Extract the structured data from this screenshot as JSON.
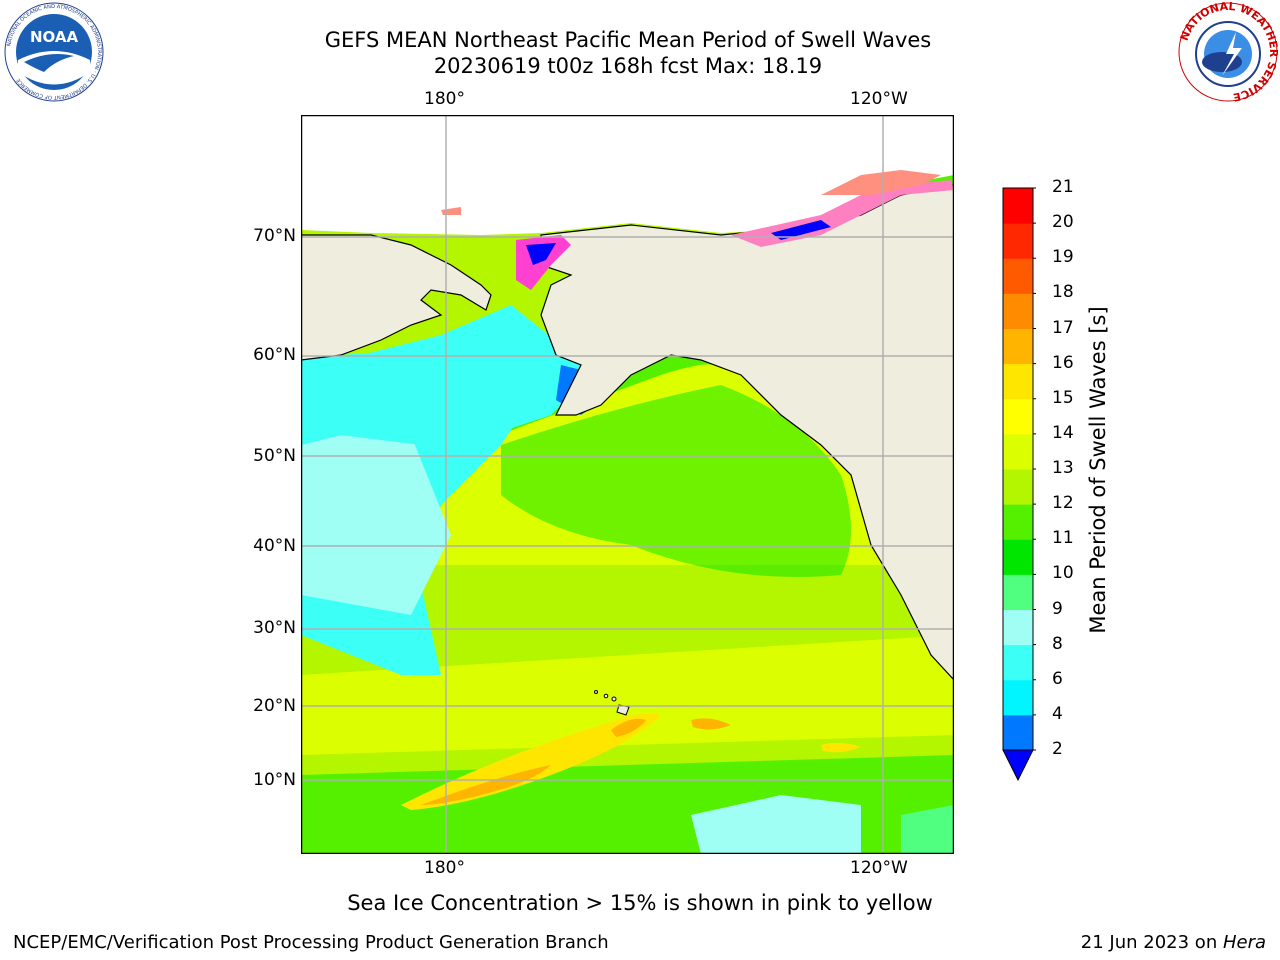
{
  "header": {
    "title_line1": "GEFS MEAN Northeast Pacific Mean Period of Swell Waves",
    "title_line2": "20230619 t00z 168h fcst   Max: 18.19"
  },
  "logos": {
    "left": {
      "text": "NOAA",
      "ring_text": "NATIONAL OCEANIC AND ATMOSPHERIC ADMINISTRATION · U.S. DEPARTMENT OF COMMERCE"
    },
    "right": {
      "ring_text": "NATIONAL WEATHER SERVICE"
    }
  },
  "map": {
    "lon_labels_top": [
      "180°",
      "120°W"
    ],
    "lon_labels_bottom": [
      "180°",
      "120°W"
    ],
    "lat_labels": [
      "70°N",
      "60°N",
      "50°N",
      "40°N",
      "30°N",
      "20°N",
      "10°N"
    ],
    "land_color": "#efedde",
    "gridline_color": "#b0b0b0"
  },
  "colorbar": {
    "label": "Mean Period of Swell Waves [s]",
    "ticks": [
      "21",
      "20",
      "19",
      "18",
      "17",
      "16",
      "15",
      "14",
      "13",
      "12",
      "11",
      "10",
      "9",
      "8",
      "6",
      "4",
      "2"
    ],
    "levels_bottom_to_top": [
      2,
      4,
      6,
      8,
      9,
      10,
      11,
      12,
      13,
      14,
      15,
      16,
      17,
      18,
      19,
      20,
      21
    ],
    "colors_bottom_to_top": [
      "#0078ff",
      "#00f5ff",
      "#3cfff5",
      "#a0fff5",
      "#50ff80",
      "#00e600",
      "#55f000",
      "#b4f500",
      "#dcff00",
      "#ffff00",
      "#ffe600",
      "#ffb400",
      "#ff8c00",
      "#ff5a00",
      "#ff2800",
      "#ff0000"
    ],
    "extend_min_color": "#0000ff"
  },
  "note": "Sea Ice Concentration > 15% is shown in pink to yellow",
  "footer": {
    "left": "NCEP/EMC/Verification Post Processing Product Generation Branch",
    "right_prefix": "21 Jun 2023 on ",
    "right_host": "Hera"
  }
}
